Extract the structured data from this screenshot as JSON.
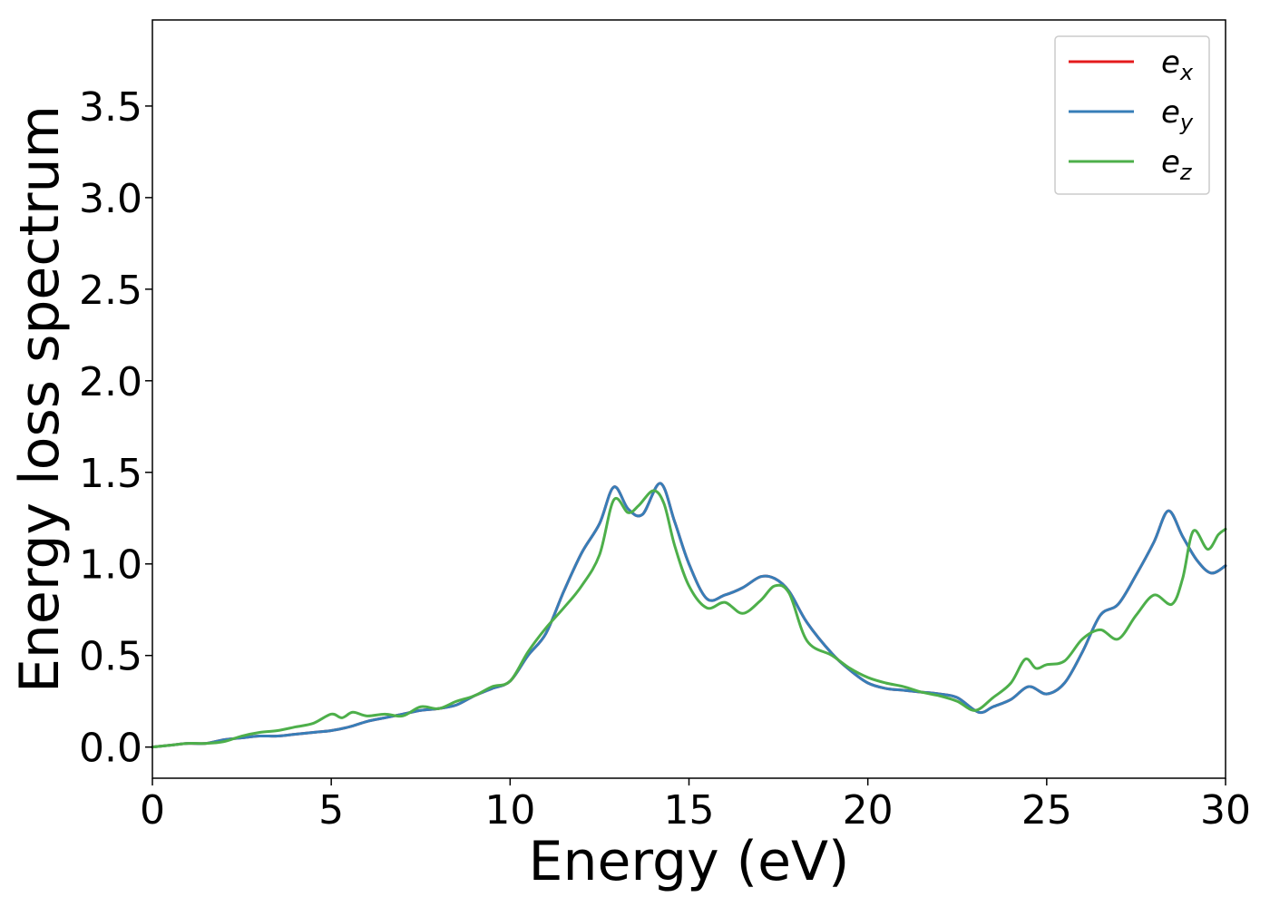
{
  "chart_data": {
    "type": "line",
    "xlabel": "Energy (eV)",
    "ylabel": "Energy loss spectrum",
    "xlim": [
      0,
      30
    ],
    "ylim": [
      -0.17,
      3.97
    ],
    "xticks": [
      0,
      5,
      10,
      15,
      20,
      25,
      30
    ],
    "xtick_labels": [
      "0",
      "5",
      "10",
      "15",
      "20",
      "25",
      "30"
    ],
    "yticks": [
      0.0,
      0.5,
      1.0,
      1.5,
      2.0,
      2.5,
      3.0,
      3.5
    ],
    "ytick_labels": [
      "0.0",
      "0.5",
      "1.0",
      "1.5",
      "2.0",
      "2.5",
      "3.0",
      "3.5"
    ],
    "grid": false,
    "legend_position": "top-right",
    "series": [
      {
        "name": "e",
        "subscript": "x",
        "color": "#e41a1c",
        "x": [
          0,
          0.5,
          1,
          1.5,
          2,
          2.5,
          3,
          3.5,
          4,
          4.5,
          5,
          5.5,
          6,
          6.5,
          7,
          7.5,
          8,
          8.5,
          9,
          9.5,
          10,
          10.5,
          11,
          11.5,
          12,
          12.5,
          12.9,
          13.3,
          13.7,
          14.2,
          14.6,
          15,
          15.5,
          16,
          16.5,
          17,
          17.4,
          17.8,
          18.3,
          19,
          19.5,
          20,
          20.5,
          21,
          21.5,
          22,
          22.5,
          23.1,
          23.5,
          24,
          24.5,
          25,
          25.5,
          26,
          26.5,
          27,
          27.5,
          28,
          28.4,
          28.8,
          29.2,
          29.6,
          30
        ],
        "values": [
          0,
          0.01,
          0.02,
          0.02,
          0.04,
          0.05,
          0.06,
          0.06,
          0.07,
          0.08,
          0.09,
          0.11,
          0.14,
          0.16,
          0.18,
          0.2,
          0.21,
          0.23,
          0.28,
          0.32,
          0.36,
          0.5,
          0.62,
          0.85,
          1.06,
          1.22,
          1.42,
          1.3,
          1.27,
          1.44,
          1.23,
          1.0,
          0.81,
          0.83,
          0.87,
          0.93,
          0.92,
          0.85,
          0.68,
          0.51,
          0.42,
          0.35,
          0.32,
          0.31,
          0.3,
          0.29,
          0.27,
          0.19,
          0.22,
          0.26,
          0.33,
          0.29,
          0.35,
          0.52,
          0.72,
          0.78,
          0.94,
          1.12,
          1.29,
          1.15,
          1.02,
          0.95,
          0.99
        ]
      },
      {
        "name": "e",
        "subscript": "y",
        "color": "#377eb8",
        "x": [
          0,
          0.5,
          1,
          1.5,
          2,
          2.5,
          3,
          3.5,
          4,
          4.5,
          5,
          5.5,
          6,
          6.5,
          7,
          7.5,
          8,
          8.5,
          9,
          9.5,
          10,
          10.5,
          11,
          11.5,
          12,
          12.5,
          12.9,
          13.3,
          13.7,
          14.2,
          14.6,
          15,
          15.5,
          16,
          16.5,
          17,
          17.4,
          17.8,
          18.3,
          19,
          19.5,
          20,
          20.5,
          21,
          21.5,
          22,
          22.5,
          23.1,
          23.5,
          24,
          24.5,
          25,
          25.5,
          26,
          26.5,
          27,
          27.5,
          28,
          28.4,
          28.8,
          29.2,
          29.6,
          30
        ],
        "values": [
          0,
          0.01,
          0.02,
          0.02,
          0.04,
          0.05,
          0.06,
          0.06,
          0.07,
          0.08,
          0.09,
          0.11,
          0.14,
          0.16,
          0.18,
          0.2,
          0.21,
          0.23,
          0.28,
          0.32,
          0.36,
          0.5,
          0.62,
          0.85,
          1.06,
          1.22,
          1.42,
          1.3,
          1.27,
          1.44,
          1.23,
          1.0,
          0.81,
          0.83,
          0.87,
          0.93,
          0.92,
          0.85,
          0.68,
          0.51,
          0.42,
          0.35,
          0.32,
          0.31,
          0.3,
          0.29,
          0.27,
          0.19,
          0.22,
          0.26,
          0.33,
          0.29,
          0.35,
          0.52,
          0.72,
          0.78,
          0.94,
          1.12,
          1.29,
          1.15,
          1.02,
          0.95,
          0.99
        ]
      },
      {
        "name": "e",
        "subscript": "z",
        "color": "#4daf4a",
        "x": [
          0,
          0.5,
          1,
          1.5,
          2,
          2.5,
          3,
          3.5,
          4,
          4.5,
          5,
          5.3,
          5.6,
          6,
          6.5,
          7,
          7.5,
          8,
          8.5,
          9,
          9.5,
          10,
          10.5,
          11,
          11.5,
          12,
          12.5,
          12.9,
          13.3,
          13.6,
          14,
          14.3,
          14.6,
          15,
          15.5,
          16,
          16.5,
          17,
          17.4,
          17.8,
          18.3,
          19,
          19.5,
          20,
          20.5,
          21,
          21.5,
          22,
          22.5,
          23,
          23.5,
          24,
          24.4,
          24.7,
          25,
          25.5,
          26,
          26.5,
          27,
          27.5,
          28,
          28.5,
          28.8,
          29.1,
          29.5,
          29.8,
          30
        ],
        "values": [
          0,
          0.01,
          0.02,
          0.02,
          0.03,
          0.06,
          0.08,
          0.09,
          0.11,
          0.13,
          0.18,
          0.16,
          0.19,
          0.17,
          0.18,
          0.17,
          0.22,
          0.21,
          0.25,
          0.28,
          0.33,
          0.36,
          0.52,
          0.65,
          0.76,
          0.88,
          1.05,
          1.35,
          1.28,
          1.32,
          1.4,
          1.33,
          1.1,
          0.88,
          0.76,
          0.79,
          0.73,
          0.8,
          0.88,
          0.84,
          0.58,
          0.5,
          0.43,
          0.38,
          0.35,
          0.33,
          0.3,
          0.28,
          0.25,
          0.2,
          0.27,
          0.35,
          0.48,
          0.43,
          0.45,
          0.47,
          0.59,
          0.64,
          0.59,
          0.72,
          0.83,
          0.78,
          0.92,
          1.18,
          1.08,
          1.16,
          1.19
        ]
      }
    ]
  }
}
